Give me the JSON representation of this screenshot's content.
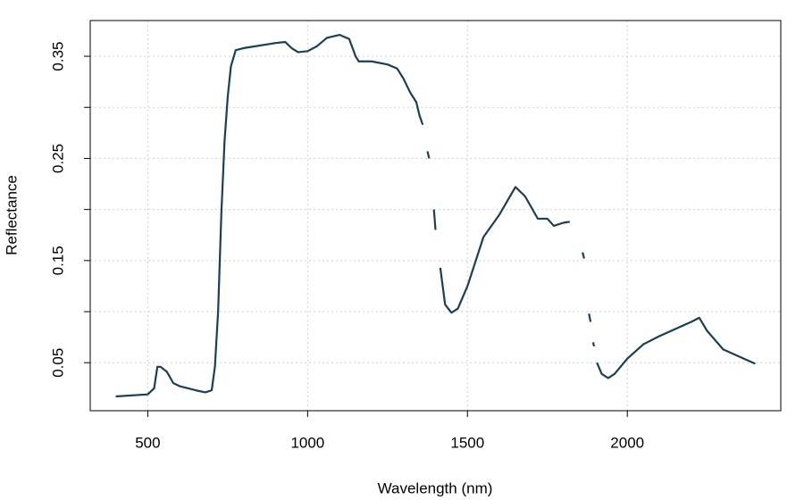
{
  "chart_data": {
    "type": "line",
    "xlabel": "Wavelength (nm)",
    "ylabel": "Reflectance",
    "x": [
      400,
      500,
      520,
      530,
      540,
      560,
      580,
      600,
      650,
      680,
      700,
      710,
      720,
      730,
      740,
      750,
      760,
      775,
      800,
      900,
      930,
      950,
      970,
      1000,
      1030,
      1060,
      1100,
      1130,
      1150,
      1160,
      1200,
      1250,
      1280,
      1300,
      1320,
      1340,
      1350,
      1360,
      1365,
      1375,
      1380,
      1390,
      1395,
      1400,
      1410,
      1415,
      1430,
      1450,
      1470,
      1500,
      1550,
      1600,
      1650,
      1680,
      1720,
      1750,
      1770,
      1800,
      1820,
      1840,
      1860,
      1865,
      1872,
      1880,
      1885,
      1890,
      1893,
      1896,
      1900,
      1905,
      1920,
      1940,
      1960,
      2000,
      2050,
      2100,
      2150,
      2200,
      2225,
      2250,
      2300,
      2350,
      2400
    ],
    "series": [
      {
        "name": "Reflectance",
        "color": "#1b3f54",
        "values": [
          0.017,
          0.019,
          0.025,
          0.046,
          0.046,
          0.041,
          0.03,
          0.027,
          0.023,
          0.021,
          0.023,
          0.046,
          0.1,
          0.195,
          0.266,
          0.31,
          0.34,
          0.356,
          0.358,
          0.363,
          0.364,
          0.358,
          0.354,
          0.355,
          0.36,
          0.368,
          0.371,
          0.367,
          0.35,
          0.345,
          0.345,
          0.342,
          0.338,
          0.328,
          0.315,
          0.305,
          0.292,
          0.283,
          null,
          0.257,
          0.25,
          null,
          0.2,
          0.18,
          null,
          0.143,
          0.107,
          0.099,
          0.103,
          0.125,
          0.173,
          0.195,
          0.222,
          0.213,
          0.191,
          0.191,
          0.184,
          0.187,
          0.188,
          null,
          0.158,
          0.152,
          null,
          0.098,
          0.09,
          null,
          0.07,
          0.066,
          null,
          0.05,
          0.039,
          0.035,
          0.039,
          0.054,
          0.068,
          0.076,
          0.083,
          0.09,
          0.094,
          0.081,
          0.063,
          0.056,
          0.049
        ]
      }
    ],
    "xlim": [
      320,
      2480
    ],
    "ylim": [
      0.003,
      0.385
    ],
    "xticks": [
      500,
      1000,
      1500,
      2000
    ],
    "yticks": [
      0.05,
      {
        "value": 0.1,
        "label": null
      },
      0.15,
      {
        "value": 0.2,
        "label": null
      },
      0.25,
      {
        "value": 0.3,
        "label": null
      },
      0.35
    ],
    "grid": true
  }
}
